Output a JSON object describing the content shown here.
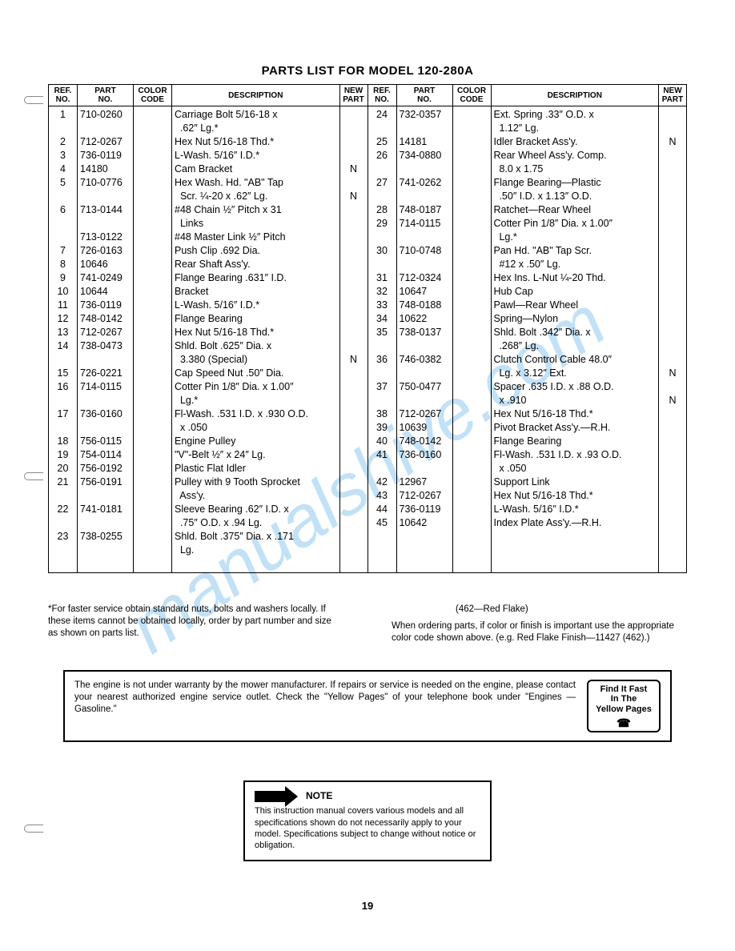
{
  "watermark": "manualshive.com",
  "title": "PARTS LIST FOR MODEL 120-280A",
  "headers": {
    "ref": "REF.\nNO.",
    "part": "PART\nNO.",
    "color": "COLOR\nCODE",
    "desc": "DESCRIPTION",
    "newp": "NEW\nPART"
  },
  "left_rows": [
    {
      "ref": "1",
      "part": "710-0260",
      "desc": "Carriage Bolt 5/16-18 x",
      "new": ""
    },
    {
      "ref": "",
      "part": "",
      "desc": "  .62″ Lg.*",
      "new": ""
    },
    {
      "ref": "2",
      "part": "712-0267",
      "desc": "Hex Nut 5/16-18 Thd.*",
      "new": ""
    },
    {
      "ref": "3",
      "part": "736-0119",
      "desc": "L-Wash. 5/16″ I.D.*",
      "new": ""
    },
    {
      "ref": "4",
      "part": "14180",
      "desc": "Cam Bracket",
      "new": "N"
    },
    {
      "ref": "5",
      "part": "710-0776",
      "desc": "Hex Wash. Hd. \"AB\" Tap",
      "new": ""
    },
    {
      "ref": "",
      "part": "",
      "desc": "  Scr. ¼-20 x .62″ Lg.",
      "new": "N"
    },
    {
      "ref": "6",
      "part": "713-0144",
      "desc": "#48 Chain ½″ Pitch x 31",
      "new": ""
    },
    {
      "ref": "",
      "part": "",
      "desc": "  Links",
      "new": ""
    },
    {
      "ref": "",
      "part": "713-0122",
      "desc": "#48 Master Link ½″ Pitch",
      "new": ""
    },
    {
      "ref": "7",
      "part": "726-0163",
      "desc": "Push Clip .692 Dia.",
      "new": ""
    },
    {
      "ref": "8",
      "part": "10646",
      "desc": "Rear Shaft Ass'y.",
      "new": ""
    },
    {
      "ref": "9",
      "part": "741-0249",
      "desc": "Flange Bearing .631″ I.D.",
      "new": ""
    },
    {
      "ref": "10",
      "part": "10644",
      "desc": "Bracket",
      "new": ""
    },
    {
      "ref": "11",
      "part": "736-0119",
      "desc": "L-Wash. 5/16″ I.D.*",
      "new": ""
    },
    {
      "ref": "12",
      "part": "748-0142",
      "desc": "Flange Bearing",
      "new": ""
    },
    {
      "ref": "13",
      "part": "712-0267",
      "desc": "Hex Nut 5/16-18 Thd.*",
      "new": ""
    },
    {
      "ref": "14",
      "part": "738-0473",
      "desc": "Shld. Bolt .625″ Dia. x",
      "new": ""
    },
    {
      "ref": "",
      "part": "",
      "desc": "  3.380 (Special)",
      "new": "N"
    },
    {
      "ref": "15",
      "part": "726-0221",
      "desc": "Cap Speed Nut .50″ Dia.",
      "new": ""
    },
    {
      "ref": "16",
      "part": "714-0115",
      "desc": "Cotter Pin 1/8″ Dia. x 1.00″",
      "new": ""
    },
    {
      "ref": "",
      "part": "",
      "desc": "  Lg.*",
      "new": ""
    },
    {
      "ref": "17",
      "part": "736-0160",
      "desc": "Fl-Wash. .531 I.D. x .930 O.D.",
      "new": ""
    },
    {
      "ref": "",
      "part": "",
      "desc": "  x .050",
      "new": ""
    },
    {
      "ref": "18",
      "part": "756-0115",
      "desc": "Engine Pulley",
      "new": ""
    },
    {
      "ref": "19",
      "part": "754-0114",
      "desc": "\"V\"-Belt ½″ x 24″ Lg.",
      "new": ""
    },
    {
      "ref": "20",
      "part": "756-0192",
      "desc": "Plastic Flat Idler",
      "new": ""
    },
    {
      "ref": "21",
      "part": "756-0191",
      "desc": "Pulley with 9 Tooth Sprocket",
      "new": ""
    },
    {
      "ref": "",
      "part": "",
      "desc": "  Ass'y.",
      "new": ""
    },
    {
      "ref": "22",
      "part": "741-0181",
      "desc": "Sleeve Bearing .62″ I.D. x",
      "new": ""
    },
    {
      "ref": "",
      "part": "",
      "desc": "  .75″ O.D. x .94 Lg.",
      "new": ""
    },
    {
      "ref": "23",
      "part": "738-0255",
      "desc": "Shld. Bolt .375″ Dia. x .171",
      "new": ""
    },
    {
      "ref": "",
      "part": "",
      "desc": "  Lg.",
      "new": ""
    },
    {
      "ref": "",
      "part": "",
      "desc": " ",
      "new": ""
    }
  ],
  "right_rows": [
    {
      "ref": "24",
      "part": "732-0357",
      "desc": "Ext. Spring .33″ O.D. x",
      "new": ""
    },
    {
      "ref": "",
      "part": "",
      "desc": "  1.12″ Lg.",
      "new": ""
    },
    {
      "ref": "25",
      "part": "14181",
      "desc": "Idler Bracket Ass'y.",
      "new": "N"
    },
    {
      "ref": "26",
      "part": "734-0880",
      "desc": "Rear Wheel Ass'y. Comp.",
      "new": ""
    },
    {
      "ref": "",
      "part": "",
      "desc": "  8.0 x 1.75",
      "new": ""
    },
    {
      "ref": "27",
      "part": "741-0262",
      "desc": "Flange Bearing—Plastic",
      "new": ""
    },
    {
      "ref": "",
      "part": "",
      "desc": "  .50″ I.D. x 1.13″ O.D.",
      "new": ""
    },
    {
      "ref": "28",
      "part": "748-0187",
      "desc": "Ratchet—Rear Wheel",
      "new": ""
    },
    {
      "ref": "29",
      "part": "714-0115",
      "desc": "Cotter Pin 1/8″ Dia. x 1.00″",
      "new": ""
    },
    {
      "ref": "",
      "part": "",
      "desc": "  Lg.*",
      "new": ""
    },
    {
      "ref": "30",
      "part": "710-0748",
      "desc": "Pan Hd. \"AB\" Tap Scr.",
      "new": ""
    },
    {
      "ref": "",
      "part": "",
      "desc": "  #12 x .50″ Lg.",
      "new": ""
    },
    {
      "ref": "31",
      "part": "712-0324",
      "desc": "Hex Ins. L-Nut ¼-20 Thd.",
      "new": ""
    },
    {
      "ref": "32",
      "part": "10647",
      "desc": "Hub Cap",
      "new": ""
    },
    {
      "ref": "33",
      "part": "748-0188",
      "desc": "Pawl—Rear Wheel",
      "new": ""
    },
    {
      "ref": "34",
      "part": "10622",
      "desc": "Spring—Nylon",
      "new": ""
    },
    {
      "ref": "35",
      "part": "738-0137",
      "desc": "Shld. Bolt .342″ Dia. x",
      "new": ""
    },
    {
      "ref": "",
      "part": "",
      "desc": "  .268″ Lg.",
      "new": ""
    },
    {
      "ref": "36",
      "part": "746-0382",
      "desc": "Clutch Control Cable 48.0″",
      "new": ""
    },
    {
      "ref": "",
      "part": "",
      "desc": "  Lg. x 3.12″ Ext.",
      "new": "N"
    },
    {
      "ref": "37",
      "part": "750-0477",
      "desc": "Spacer .635 I.D. x .88 O.D.",
      "new": ""
    },
    {
      "ref": "",
      "part": "",
      "desc": "  x .910",
      "new": "N"
    },
    {
      "ref": "38",
      "part": "712-0267",
      "desc": "Hex Nut 5/16-18 Thd.*",
      "new": ""
    },
    {
      "ref": "39",
      "part": "10639",
      "desc": "Pivot Bracket Ass'y.—R.H.",
      "new": ""
    },
    {
      "ref": "40",
      "part": "748-0142",
      "desc": "Flange Bearing",
      "new": ""
    },
    {
      "ref": "41",
      "part": "736-0160",
      "desc": "Fl-Wash. .531 I.D. x .93 O.D.",
      "new": ""
    },
    {
      "ref": "",
      "part": "",
      "desc": "  x .050",
      "new": ""
    },
    {
      "ref": "42",
      "part": "12967",
      "desc": "Support Link",
      "new": ""
    },
    {
      "ref": "43",
      "part": "712-0267",
      "desc": "Hex Nut 5/16-18 Thd.*",
      "new": ""
    },
    {
      "ref": "44",
      "part": "736-0119",
      "desc": "L-Wash. 5/16″ I.D.*",
      "new": ""
    },
    {
      "ref": "45",
      "part": "10642",
      "desc": "Index Plate Ass'y.—R.H.",
      "new": ""
    },
    {
      "ref": "",
      "part": "",
      "desc": " ",
      "new": ""
    },
    {
      "ref": "",
      "part": "",
      "desc": " ",
      "new": ""
    },
    {
      "ref": "",
      "part": "",
      "desc": " ",
      "new": ""
    }
  ],
  "footnote_left": "*For faster service obtain standard nuts, bolts and washers locally. If these items cannot be obtained locally, order by part number and size as shown on parts list.",
  "color_key": "(462—Red Flake)",
  "footnote_right": "When ordering parts, if color or finish is important use the appropriate color code shown above. (e.g. Red Flake Finish—11427 (462).)",
  "engine_text": "The engine is not under warranty by the mower manufacturer. If repairs or service is needed on the engine, please contact your nearest authorized engine service outlet. Check the \"Yellow Pages\" of your telephone book under \"Engines — Gasoline.\"",
  "yp_line1": "Find It Fast",
  "yp_line2": "In The",
  "yp_line3": "Yellow Pages",
  "note_label": "NOTE",
  "note_text": "This instruction manual covers various models and all specifications shown do not necessarily apply to your model. Specifications subject to change without notice or obligation.",
  "page_num": "19"
}
